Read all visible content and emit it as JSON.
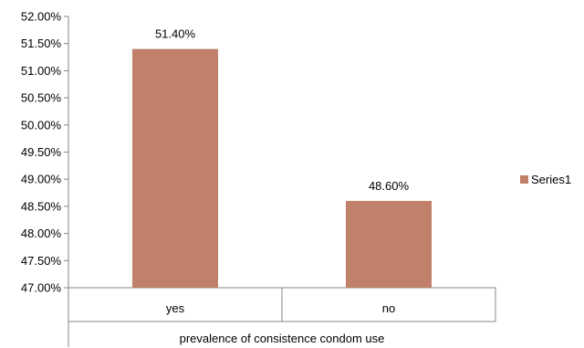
{
  "chart_data": {
    "type": "bar",
    "categories": [
      "yes",
      "no"
    ],
    "series": [
      {
        "name": "Series1",
        "values": [
          51.4,
          48.6
        ],
        "data_labels": [
          "51.40%",
          "48.60%"
        ],
        "color": "#c0806a"
      }
    ],
    "xlabel": "prevalence of consistence condom use",
    "ylabel": "",
    "ylim": [
      47.0,
      52.0
    ],
    "y_ticks": [
      "47.00%",
      "47.50%",
      "48.00%",
      "48.50%",
      "49.00%",
      "49.50%",
      "50.00%",
      "50.50%",
      "51.00%",
      "51.50%",
      "52.00%"
    ],
    "grid": false,
    "legend_position": "right"
  }
}
